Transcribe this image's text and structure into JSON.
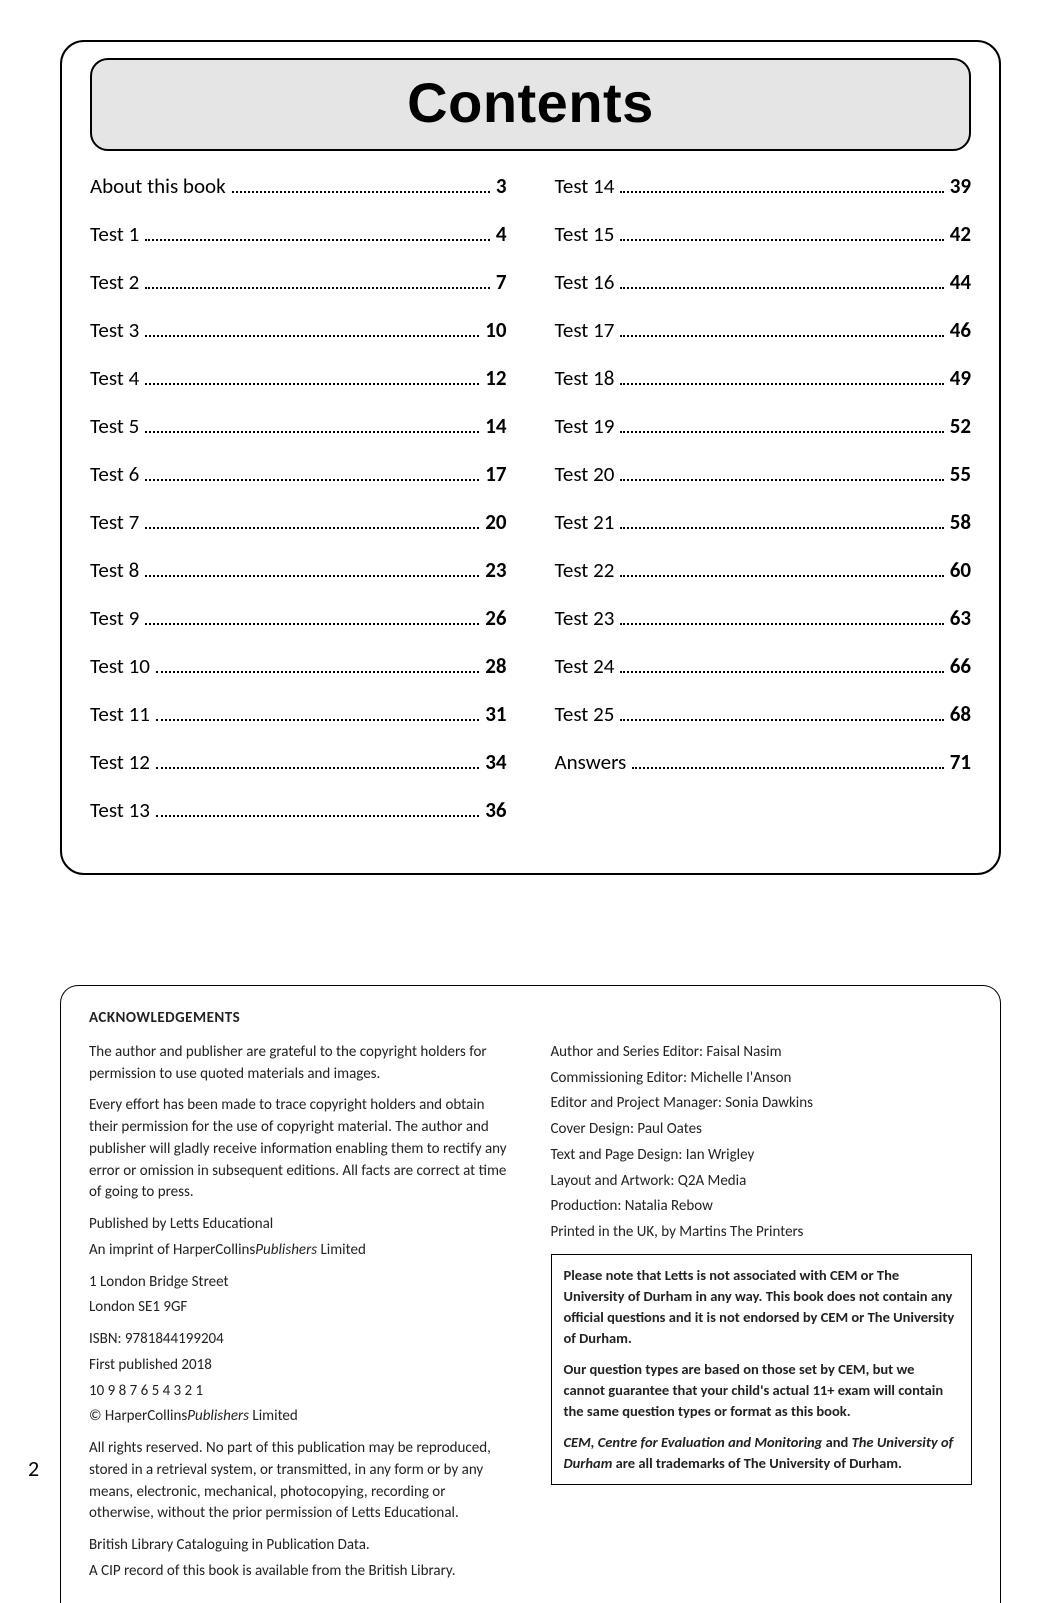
{
  "contents": {
    "title": "Contents",
    "left": [
      {
        "label": "About this book",
        "page": "3"
      },
      {
        "label": "Test 1",
        "page": "4"
      },
      {
        "label": "Test 2",
        "page": "7"
      },
      {
        "label": "Test 3",
        "page": "10"
      },
      {
        "label": "Test 4",
        "page": "12"
      },
      {
        "label": "Test 5",
        "page": "14"
      },
      {
        "label": "Test 6",
        "page": "17"
      },
      {
        "label": "Test 7",
        "page": "20"
      },
      {
        "label": "Test 8",
        "page": "23"
      },
      {
        "label": "Test 9",
        "page": "26"
      },
      {
        "label": "Test 10",
        "page": "28"
      },
      {
        "label": "Test 11",
        "page": "31"
      },
      {
        "label": "Test 12",
        "page": "34"
      },
      {
        "label": "Test 13",
        "page": "36"
      }
    ],
    "right": [
      {
        "label": "Test 14",
        "page": "39"
      },
      {
        "label": "Test 15",
        "page": "42"
      },
      {
        "label": "Test 16",
        "page": "44"
      },
      {
        "label": "Test 17",
        "page": "46"
      },
      {
        "label": "Test 18",
        "page": "49"
      },
      {
        "label": "Test 19",
        "page": "52"
      },
      {
        "label": "Test 20",
        "page": "55"
      },
      {
        "label": "Test 21",
        "page": "58"
      },
      {
        "label": "Test 22",
        "page": "60"
      },
      {
        "label": "Test 23",
        "page": "63"
      },
      {
        "label": "Test 24",
        "page": "66"
      },
      {
        "label": "Test 25",
        "page": "68"
      },
      {
        "label": "Answers",
        "page": "71"
      }
    ]
  },
  "ack": {
    "title": "ACKNOWLEDGEMENTS",
    "para1": "The author and publisher are grateful to the copyright holders for permission to use quoted materials and images.",
    "para2": "Every effort has been made to trace copyright holders and obtain their permission for the use of copyright material. The author and publisher will gladly receive information enabling them to rectify any error or omission in subsequent editions. All facts are correct at time of going to press.",
    "published_by": "Published by Letts Educational",
    "imprint_prefix": "An imprint of HarperCollins",
    "imprint_italic": "Publishers",
    "imprint_suffix": " Limited",
    "addr1": "1 London Bridge Street",
    "addr2": "London SE1 9GF",
    "isbn": "ISBN: 9781844199204",
    "first_pub": "First published 2018",
    "printing": "10 9 8 7 6 5 4 3 2 1",
    "copyright_prefix": "© HarperCollins",
    "copyright_italic": "Publishers",
    "copyright_suffix": " Limited",
    "rights": "All rights reserved. No part of this publication may be reproduced, stored in a retrieval system, or transmitted, in any form or by any means, electronic, mechanical, photocopying, recording or otherwise, without the prior permission of Letts Educational.",
    "bl1": "British Library Cataloguing in Publication Data.",
    "bl2": "A CIP record of this book is available from the British Library.",
    "credits": [
      "Author and Series Editor: Faisal Nasim",
      "Commissioning Editor: Michelle I'Anson",
      "Editor and Project Manager: Sonia Dawkins",
      "Cover Design: Paul Oates",
      "Text and Page Design: Ian Wrigley",
      "Layout and Artwork: Q2A Media",
      "Production: Natalia Rebow",
      "Printed in the UK, by Martins The Printers"
    ],
    "disclaimer1": "Please note that Letts is not associated with CEM or The University of Durham in any way. This book does not contain any official questions and it is not endorsed by CEM or The University of Durham.",
    "disclaimer2": "Our question types are based on those set by CEM, but we cannot guarantee that your child's actual 11+ exam will contain the same question types or format as this book.",
    "disclaimer3_ital1": "CEM, Centre for Evaluation and Monitoring",
    "disclaimer3_mid": " and ",
    "disclaimer3_ital2": "The University of Durham",
    "disclaimer3_end": " are all trademarks of The University of Durham."
  },
  "page_number": "2"
}
